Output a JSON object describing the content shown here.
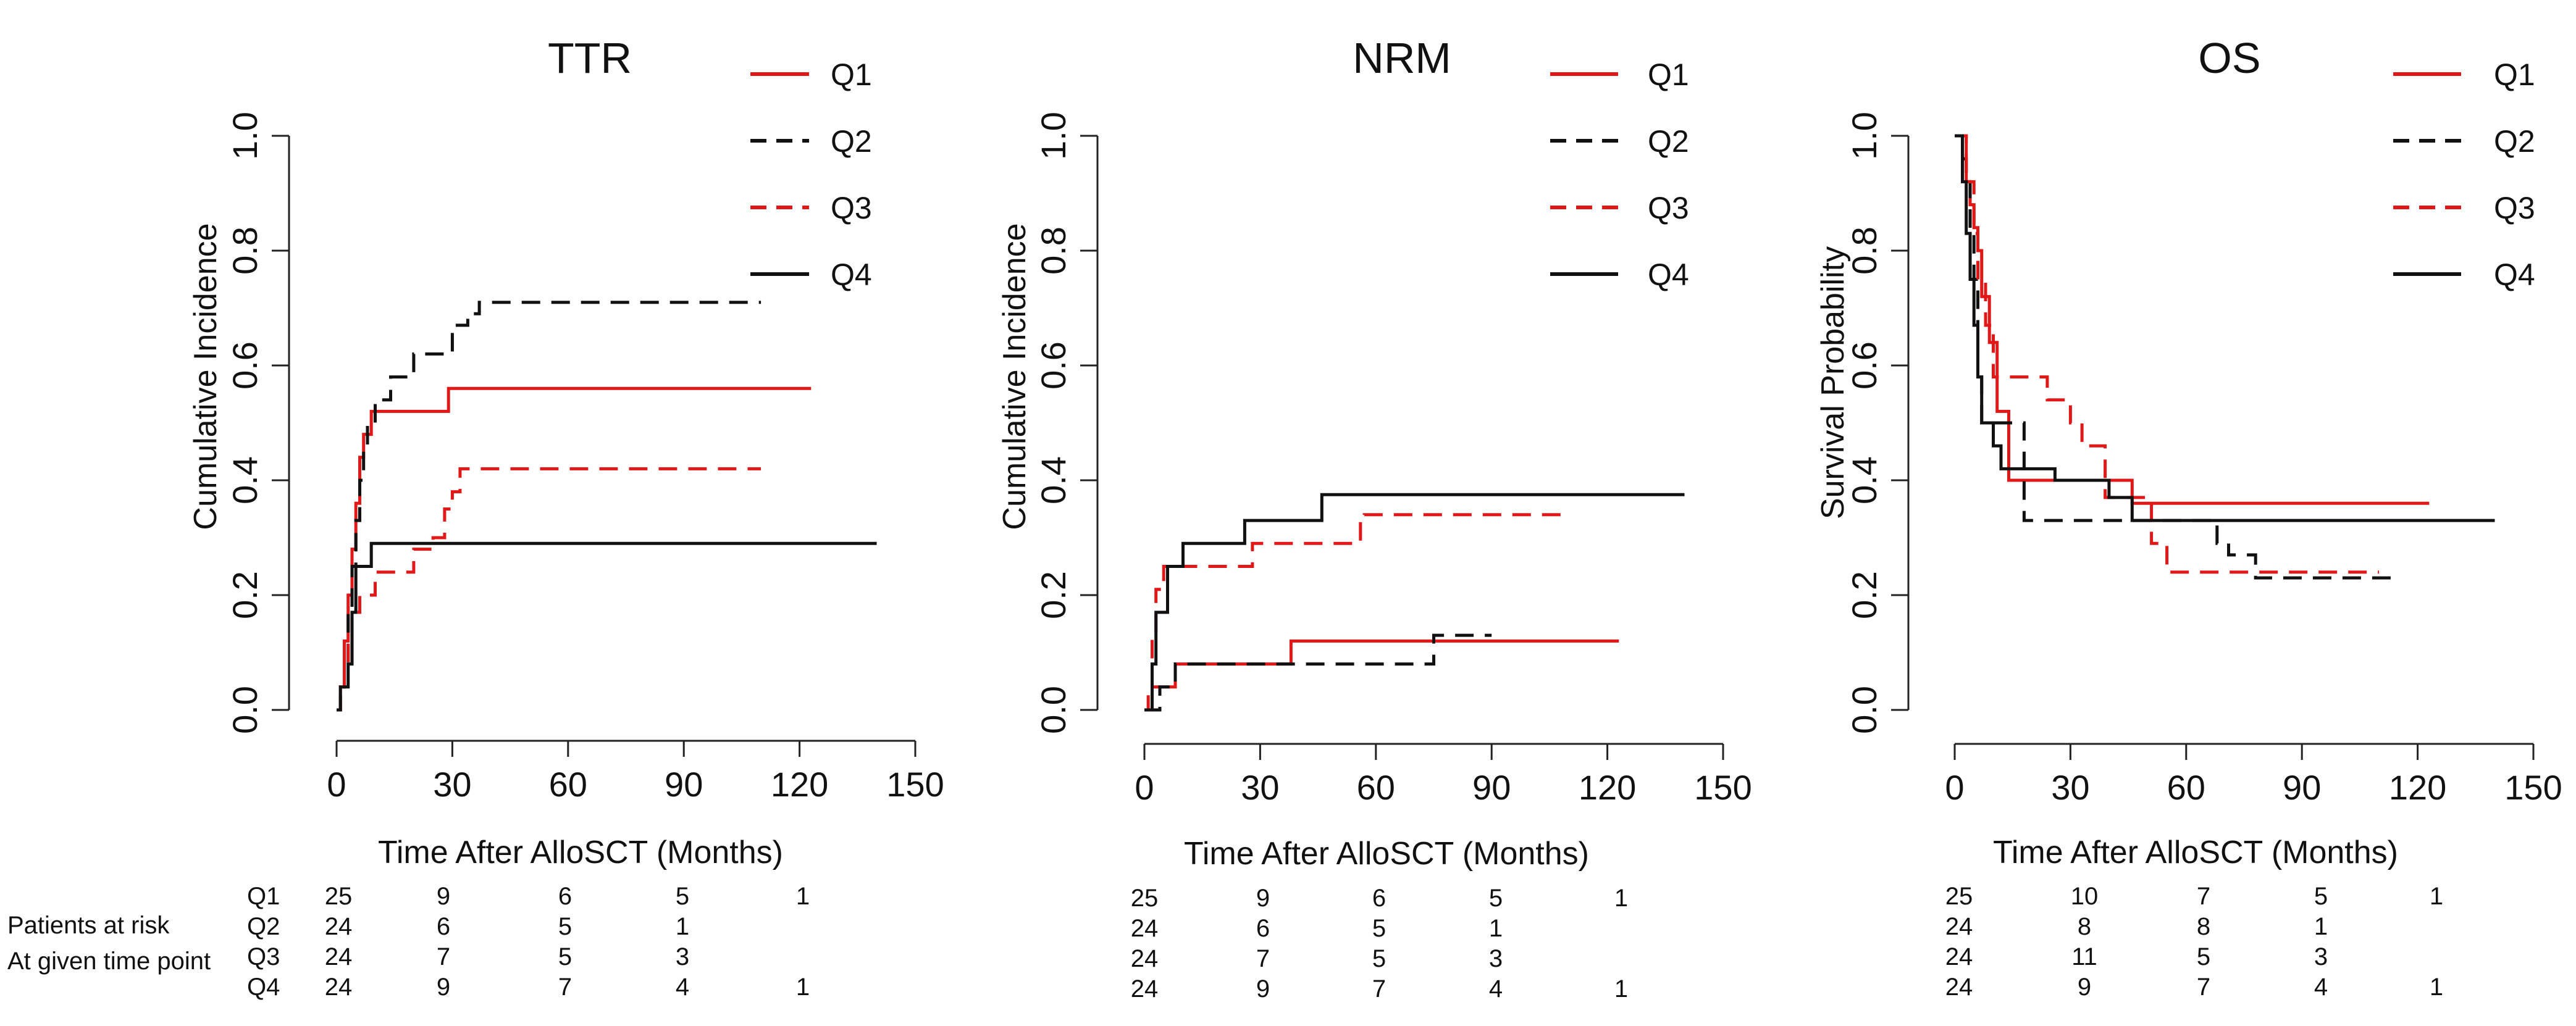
{
  "figure": {
    "risk_label_line1": "Patients at risk",
    "risk_label_line2": "At given time point"
  },
  "legend": [
    {
      "label": "Q1",
      "color": "#e01818",
      "dashed": false
    },
    {
      "label": "Q2",
      "color": "#111111",
      "dashed": true
    },
    {
      "label": "Q3",
      "color": "#e01818",
      "dashed": true
    },
    {
      "label": "Q4",
      "color": "#111111",
      "dashed": false
    }
  ],
  "chart_data": [
    {
      "type": "line",
      "step": true,
      "title": "TTR",
      "xlabel": "Time After AlloSCT (Months)",
      "ylabel": "Cumulative Incidence",
      "xlim": [
        0,
        150
      ],
      "ylim": [
        0,
        1
      ],
      "xticks": [
        "0",
        "30",
        "60",
        "90",
        "120",
        "150"
      ],
      "yticks": [
        "0.0",
        "0.2",
        "0.4",
        "0.6",
        "0.8",
        "1.0"
      ],
      "series": [
        {
          "name": "Q1",
          "x": [
            0,
            1,
            2,
            3,
            4,
            5,
            6,
            7,
            9,
            29,
            123
          ],
          "y": [
            0,
            0.04,
            0.12,
            0.2,
            0.28,
            0.36,
            0.44,
            0.48,
            0.52,
            0.56,
            0.56
          ]
        },
        {
          "name": "Q2",
          "x": [
            0,
            1,
            2,
            3,
            4,
            5,
            6,
            7,
            8,
            10,
            14,
            20,
            30,
            34,
            37,
            110
          ],
          "y": [
            0,
            0.04,
            0.08,
            0.17,
            0.25,
            0.33,
            0.4,
            0.46,
            0.5,
            0.54,
            0.58,
            0.62,
            0.67,
            0.69,
            0.71,
            0.71
          ]
        },
        {
          "name": "Q3",
          "x": [
            0,
            1,
            2,
            3,
            4,
            6,
            10,
            17,
            20,
            25,
            28,
            30,
            32,
            110
          ],
          "y": [
            0,
            0.04,
            0.08,
            0.12,
            0.17,
            0.2,
            0.24,
            0.24,
            0.28,
            0.3,
            0.35,
            0.38,
            0.42,
            0.42
          ]
        },
        {
          "name": "Q4",
          "x": [
            0,
            1,
            3,
            4,
            5,
            7,
            9,
            140
          ],
          "y": [
            0,
            0.04,
            0.08,
            0.17,
            0.25,
            0.25,
            0.29,
            0.29
          ]
        }
      ],
      "risk_table": {
        "times": [
          0,
          30,
          60,
          90,
          120
        ],
        "rows": [
          {
            "group": "Q1",
            "values": [
              "25",
              "9",
              "6",
              "5",
              "1"
            ]
          },
          {
            "group": "Q2",
            "values": [
              "24",
              "6",
              "5",
              "1",
              ""
            ]
          },
          {
            "group": "Q3",
            "values": [
              "24",
              "7",
              "5",
              "3",
              ""
            ]
          },
          {
            "group": "Q4",
            "values": [
              "24",
              "9",
              "7",
              "4",
              "1"
            ]
          }
        ]
      }
    },
    {
      "type": "line",
      "step": true,
      "title": "NRM",
      "xlabel": "Time After AlloSCT (Months)",
      "ylabel": "Cumulative Incidence",
      "xlim": [
        0,
        150
      ],
      "ylim": [
        0,
        1
      ],
      "xticks": [
        "0",
        "30",
        "60",
        "90",
        "120",
        "150"
      ],
      "yticks": [
        "0.0",
        "0.2",
        "0.4",
        "0.6",
        "0.8",
        "1.0"
      ],
      "series": [
        {
          "name": "Q1",
          "x": [
            0,
            2,
            8,
            38,
            123
          ],
          "y": [
            0,
            0.04,
            0.08,
            0.12,
            0.12
          ]
        },
        {
          "name": "Q2",
          "x": [
            0,
            4,
            8,
            40,
            75,
            77,
            82,
            90
          ],
          "y": [
            0,
            0.04,
            0.08,
            0.08,
            0.13,
            0.13,
            0.13,
            0.13
          ]
        },
        {
          "name": "Q3",
          "x": [
            0,
            1,
            2,
            3,
            5,
            28,
            56,
            57,
            110
          ],
          "y": [
            0,
            0.04,
            0.13,
            0.21,
            0.25,
            0.29,
            0.33,
            0.34,
            0.34
          ]
        },
        {
          "name": "Q4",
          "x": [
            0,
            2,
            3,
            6,
            10,
            26,
            46,
            140
          ],
          "y": [
            0,
            0.08,
            0.17,
            0.25,
            0.29,
            0.33,
            0.375,
            0.375
          ]
        }
      ],
      "risk_table": {
        "times": [
          0,
          30,
          60,
          90,
          120
        ],
        "rows": [
          {
            "group": "Q1",
            "values": [
              "25",
              "9",
              "6",
              "5",
              "1"
            ]
          },
          {
            "group": "Q2",
            "values": [
              "24",
              "6",
              "5",
              "1",
              ""
            ]
          },
          {
            "group": "Q3",
            "values": [
              "24",
              "7",
              "5",
              "3",
              ""
            ]
          },
          {
            "group": "Q4",
            "values": [
              "24",
              "9",
              "7",
              "4",
              "1"
            ]
          }
        ]
      }
    },
    {
      "type": "line",
      "step": true,
      "title": "OS",
      "xlabel": "Time After AlloSCT (Months)",
      "ylabel": "Survival Probability",
      "xlim": [
        0,
        150
      ],
      "ylim": [
        0,
        1
      ],
      "xticks": [
        "0",
        "30",
        "60",
        "90",
        "120",
        "150"
      ],
      "yticks": [
        "0.0",
        "0.2",
        "0.4",
        "0.6",
        "0.8",
        "1.0"
      ],
      "series": [
        {
          "name": "Q1",
          "x": [
            0,
            3,
            4,
            5,
            6,
            7,
            9,
            11,
            14,
            33,
            46,
            123
          ],
          "y": [
            1,
            0.92,
            0.88,
            0.84,
            0.8,
            0.72,
            0.64,
            0.52,
            0.4,
            0.4,
            0.36,
            0.36
          ]
        },
        {
          "name": "Q2",
          "x": [
            0,
            2,
            3,
            4,
            5,
            6,
            7,
            10,
            18,
            68,
            71,
            78,
            113
          ],
          "y": [
            1,
            0.96,
            0.92,
            0.83,
            0.75,
            0.58,
            0.5,
            0.5,
            0.33,
            0.29,
            0.27,
            0.23,
            0.23
          ]
        },
        {
          "name": "Q3",
          "x": [
            0,
            3,
            5,
            6,
            8,
            10,
            15,
            24,
            30,
            33,
            39,
            51,
            55,
            110
          ],
          "y": [
            1,
            0.92,
            0.83,
            0.75,
            0.67,
            0.58,
            0.58,
            0.54,
            0.5,
            0.46,
            0.37,
            0.29,
            0.24,
            0.24
          ]
        },
        {
          "name": "Q4",
          "x": [
            0,
            2,
            3,
            4,
            5,
            6,
            7,
            10,
            12,
            26,
            40,
            46,
            140
          ],
          "y": [
            1,
            0.92,
            0.83,
            0.75,
            0.67,
            0.58,
            0.5,
            0.46,
            0.42,
            0.4,
            0.37,
            0.33,
            0.33
          ]
        }
      ],
      "risk_table": {
        "times": [
          0,
          30,
          60,
          90,
          120
        ],
        "rows": [
          {
            "group": "Q1",
            "values": [
              "25",
              "10",
              "7",
              "5",
              "1"
            ]
          },
          {
            "group": "Q2",
            "values": [
              "24",
              "8",
              "8",
              "1",
              ""
            ]
          },
          {
            "group": "Q3",
            "values": [
              "24",
              "11",
              "5",
              "3",
              ""
            ]
          },
          {
            "group": "Q4",
            "values": [
              "24",
              "9",
              "7",
              "4",
              "1"
            ]
          }
        ]
      }
    }
  ]
}
